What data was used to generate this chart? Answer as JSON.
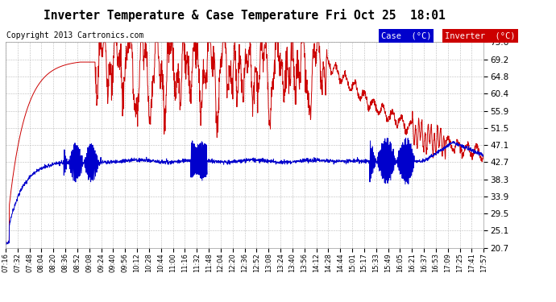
{
  "title": "Inverter Temperature & Case Temperature Fri Oct 25  18:01",
  "copyright": "Copyright 2013 Cartronics.com",
  "ylabel_right_ticks": [
    20.7,
    25.1,
    29.5,
    33.9,
    38.3,
    42.7,
    47.1,
    51.5,
    55.9,
    60.4,
    64.8,
    69.2,
    73.6
  ],
  "ymin": 20.7,
  "ymax": 73.6,
  "background_color": "#ffffff",
  "plot_background": "#ffffff",
  "grid_color": "#bbbbbb",
  "legend_case_bg": "#0000cc",
  "legend_inverter_bg": "#cc0000",
  "legend_case_text": "Case  (°C)",
  "legend_inverter_text": "Inverter  (°C)",
  "case_color": "#0000cc",
  "inverter_color": "#cc0000",
  "title_fontsize": 11,
  "copyright_fontsize": 7,
  "x_labels": [
    "07:16",
    "07:32",
    "07:48",
    "08:04",
    "08:20",
    "08:36",
    "08:52",
    "09:08",
    "09:24",
    "09:40",
    "09:56",
    "10:12",
    "10:28",
    "10:44",
    "11:00",
    "11:16",
    "11:32",
    "11:48",
    "12:04",
    "12:20",
    "12:36",
    "12:52",
    "13:08",
    "13:24",
    "13:40",
    "13:56",
    "14:12",
    "14:28",
    "14:44",
    "15:01",
    "15:17",
    "15:33",
    "15:49",
    "16:05",
    "16:21",
    "16:37",
    "16:53",
    "17:09",
    "17:25",
    "17:41",
    "17:57"
  ]
}
